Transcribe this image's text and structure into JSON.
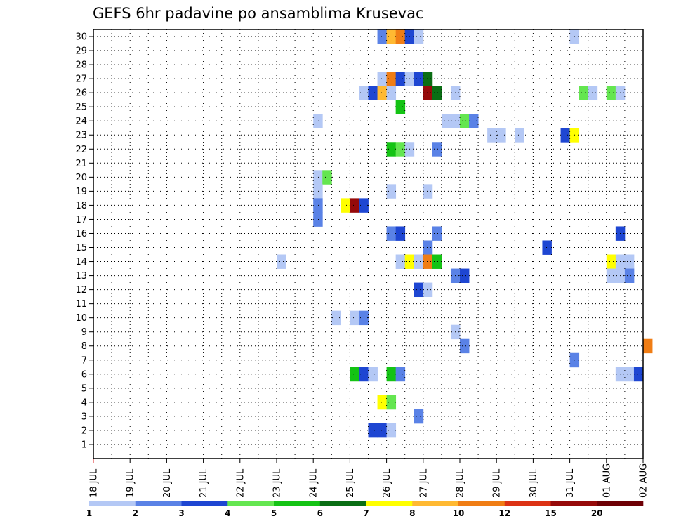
{
  "chart_data": {
    "type": "heatmap",
    "title": "GEFS 6hr padavine po ansamblima Krusevac",
    "xlabel": "",
    "ylabel": "",
    "x_range_days": [
      0,
      15
    ],
    "y_range": [
      0,
      30.5
    ],
    "x_ticks": [
      {
        "day": 0,
        "label": "18 JUL"
      },
      {
        "day": 1,
        "label": "19 JUL"
      },
      {
        "day": 2,
        "label": "20 JUL"
      },
      {
        "day": 3,
        "label": "21 JUL"
      },
      {
        "day": 4,
        "label": "22 JUL"
      },
      {
        "day": 5,
        "label": "23 JUL"
      },
      {
        "day": 6,
        "label": "24 JUL"
      },
      {
        "day": 7,
        "label": "25 JUL"
      },
      {
        "day": 8,
        "label": "26 JUL"
      },
      {
        "day": 9,
        "label": "27 JUL"
      },
      {
        "day": 10,
        "label": "28 JUL"
      },
      {
        "day": 11,
        "label": "29 JUL"
      },
      {
        "day": 12,
        "label": "30 JUL"
      },
      {
        "day": 13,
        "label": "31 JUL"
      },
      {
        "day": 14,
        "label": "01 AUG"
      },
      {
        "day": 15,
        "label": "02 AUG"
      }
    ],
    "y_ticks": [
      "1",
      "2",
      "3",
      "4",
      "5",
      "6",
      "7",
      "8",
      "9",
      "10",
      "11",
      "12",
      "13",
      "14",
      "15",
      "16",
      "17",
      "18",
      "19",
      "20",
      "21",
      "22",
      "23",
      "24",
      "25",
      "26",
      "27",
      "28",
      "29",
      "30"
    ],
    "grid": true,
    "colorbar": {
      "placement": "bottom",
      "colors": [
        "#b4c8f5",
        "#5a82e6",
        "#1e46d2",
        "#64e650",
        "#14c314",
        "#0a6e14",
        "#ffff00",
        "#ffb932",
        "#f07d14",
        "#dc3214",
        "#960a0a",
        "#6e0005"
      ],
      "labels": [
        "1",
        "2",
        "3",
        "4",
        "5",
        "6",
        "7",
        "8",
        "10",
        "12",
        "15",
        "20"
      ]
    },
    "cells": [
      {
        "m": 30,
        "t": 31,
        "c": 1
      },
      {
        "m": 30,
        "t": 32,
        "c": 7
      },
      {
        "m": 30,
        "t": 33,
        "c": 8
      },
      {
        "m": 30,
        "t": 34,
        "c": 2
      },
      {
        "m": 30,
        "t": 35,
        "c": 0
      },
      {
        "m": 30,
        "t": 52,
        "c": 0
      },
      {
        "m": 27,
        "t": 31,
        "c": 0
      },
      {
        "m": 27,
        "t": 32,
        "c": 8
      },
      {
        "m": 27,
        "t": 33,
        "c": 2
      },
      {
        "m": 27,
        "t": 34,
        "c": 0
      },
      {
        "m": 27,
        "t": 35,
        "c": 2
      },
      {
        "m": 27,
        "t": 36,
        "c": 5
      },
      {
        "m": 26,
        "t": 29,
        "c": 0
      },
      {
        "m": 26,
        "t": 30,
        "c": 2
      },
      {
        "m": 26,
        "t": 31,
        "c": 7
      },
      {
        "m": 26,
        "t": 32,
        "c": 0
      },
      {
        "m": 26,
        "t": 36,
        "c": 10
      },
      {
        "m": 26,
        "t": 37,
        "c": 5
      },
      {
        "m": 26,
        "t": 39,
        "c": 0
      },
      {
        "m": 26,
        "t": 53,
        "c": 3
      },
      {
        "m": 26,
        "t": 54,
        "c": 0
      },
      {
        "m": 26,
        "t": 56,
        "c": 3
      },
      {
        "m": 26,
        "t": 57,
        "c": 0
      },
      {
        "m": 25,
        "t": 33,
        "c": 4
      },
      {
        "m": 24,
        "t": 24,
        "c": 0
      },
      {
        "m": 24,
        "t": 38,
        "c": 0
      },
      {
        "m": 24,
        "t": 39,
        "c": 0
      },
      {
        "m": 24,
        "t": 40,
        "c": 3
      },
      {
        "m": 24,
        "t": 41,
        "c": 1
      },
      {
        "m": 23,
        "t": 43,
        "c": 0
      },
      {
        "m": 23,
        "t": 44,
        "c": 0
      },
      {
        "m": 23,
        "t": 46,
        "c": 0
      },
      {
        "m": 23,
        "t": 51,
        "c": 2
      },
      {
        "m": 23,
        "t": 52,
        "c": 6
      },
      {
        "m": 22,
        "t": 32,
        "c": 4
      },
      {
        "m": 22,
        "t": 33,
        "c": 3
      },
      {
        "m": 22,
        "t": 34,
        "c": 0
      },
      {
        "m": 22,
        "t": 37,
        "c": 1
      },
      {
        "m": 20,
        "t": 24,
        "c": 0
      },
      {
        "m": 20,
        "t": 25,
        "c": 3
      },
      {
        "m": 19,
        "t": 24,
        "c": 0
      },
      {
        "m": 19,
        "t": 32,
        "c": 0
      },
      {
        "m": 19,
        "t": 36,
        "c": 0
      },
      {
        "m": 18,
        "t": 24,
        "c": 1
      },
      {
        "m": 18,
        "t": 27,
        "c": 6
      },
      {
        "m": 18,
        "t": 28,
        "c": 10
      },
      {
        "m": 18,
        "t": 29,
        "c": 2
      },
      {
        "m": 17,
        "t": 24,
        "c": 1
      },
      {
        "m": 16,
        "t": 32,
        "c": 1
      },
      {
        "m": 16,
        "t": 33,
        "c": 2
      },
      {
        "m": 16,
        "t": 37,
        "c": 1
      },
      {
        "m": 16,
        "t": 57,
        "c": 2
      },
      {
        "m": 15,
        "t": 36,
        "c": 1
      },
      {
        "m": 15,
        "t": 49,
        "c": 2
      },
      {
        "m": 14,
        "t": 20,
        "c": 0
      },
      {
        "m": 14,
        "t": 33,
        "c": 0
      },
      {
        "m": 14,
        "t": 34,
        "c": 6
      },
      {
        "m": 14,
        "t": 35,
        "c": 0
      },
      {
        "m": 14,
        "t": 36,
        "c": 8
      },
      {
        "m": 14,
        "t": 37,
        "c": 4
      },
      {
        "m": 14,
        "t": 56,
        "c": 6
      },
      {
        "m": 14,
        "t": 57,
        "c": 0
      },
      {
        "m": 14,
        "t": 58,
        "c": 0
      },
      {
        "m": 13,
        "t": 39,
        "c": 1
      },
      {
        "m": 13,
        "t": 40,
        "c": 2
      },
      {
        "m": 13,
        "t": 56,
        "c": 0
      },
      {
        "m": 13,
        "t": 57,
        "c": 0
      },
      {
        "m": 13,
        "t": 58,
        "c": 1
      },
      {
        "m": 12,
        "t": 35,
        "c": 2
      },
      {
        "m": 12,
        "t": 36,
        "c": 0
      },
      {
        "m": 10,
        "t": 26,
        "c": 0
      },
      {
        "m": 10,
        "t": 28,
        "c": 0
      },
      {
        "m": 10,
        "t": 29,
        "c": 1
      },
      {
        "m": 9,
        "t": 39,
        "c": 0
      },
      {
        "m": 8,
        "t": 40,
        "c": 1
      },
      {
        "m": 8,
        "t": 60,
        "c": 8
      },
      {
        "m": 7,
        "t": 52,
        "c": 1
      },
      {
        "m": 6,
        "t": 28,
        "c": 4
      },
      {
        "m": 6,
        "t": 29,
        "c": 2
      },
      {
        "m": 6,
        "t": 30,
        "c": 0
      },
      {
        "m": 6,
        "t": 32,
        "c": 4
      },
      {
        "m": 6,
        "t": 33,
        "c": 1
      },
      {
        "m": 6,
        "t": 57,
        "c": 0
      },
      {
        "m": 6,
        "t": 58,
        "c": 0
      },
      {
        "m": 6,
        "t": 59,
        "c": 2
      },
      {
        "m": 4,
        "t": 31,
        "c": 6
      },
      {
        "m": 4,
        "t": 32,
        "c": 3
      },
      {
        "m": 3,
        "t": 35,
        "c": 1
      },
      {
        "m": 2,
        "t": 30,
        "c": 2
      },
      {
        "m": 2,
        "t": 31,
        "c": 2
      },
      {
        "m": 2,
        "t": 32,
        "c": 0
      }
    ]
  }
}
